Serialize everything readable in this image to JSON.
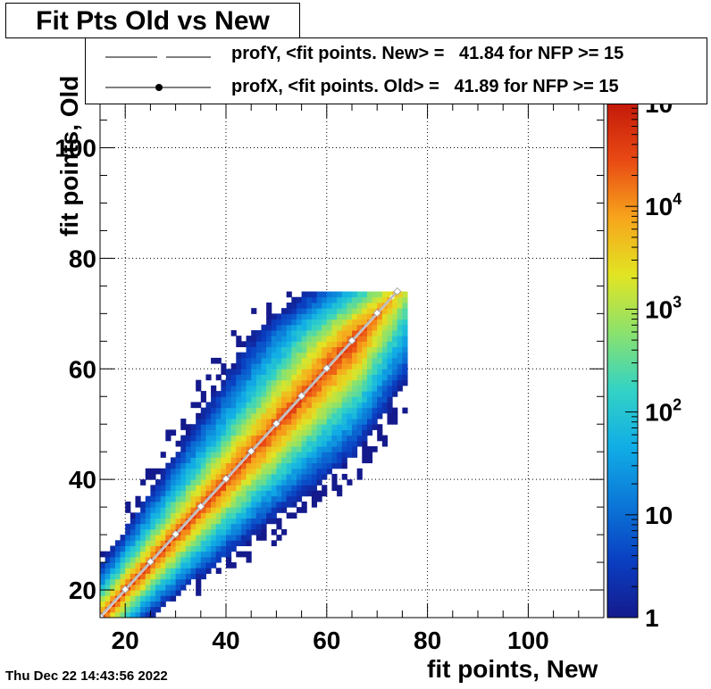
{
  "title": "Fit Pts Old vs New",
  "legend": [
    {
      "label": "profY, <fit points. New> =   41.84 for NFP >= 15",
      "style": "dashed-line"
    },
    {
      "label": "profX, <fit points. Old> =   41.89 for NFP >= 15",
      "style": "line-with-marker"
    }
  ],
  "timestamp": "Thu Dec 22 14:43:56 2022",
  "chart_data": {
    "type": "heatmap",
    "title": "Fit Pts Old vs New",
    "xlabel": "fit points, New",
    "ylabel": "fit points, Old",
    "xlim": [
      15,
      115
    ],
    "ylim": [
      15,
      108
    ],
    "x_ticks": [
      20,
      40,
      60,
      80,
      100
    ],
    "y_ticks": [
      20,
      40,
      60,
      80,
      100
    ],
    "grid": true,
    "z_scale": "log",
    "z_range": [
      1,
      100000
    ],
    "colorbar_ticks": [
      {
        "value": 1,
        "label": "1"
      },
      {
        "value": 10,
        "label": "10"
      },
      {
        "value": 100,
        "label": "10",
        "exp": "2"
      },
      {
        "value": 1000,
        "label": "10",
        "exp": "3"
      },
      {
        "value": 10000,
        "label": "10",
        "exp": "4"
      },
      {
        "value": 100000,
        "label": "10",
        "exp": "5"
      }
    ],
    "colormap": [
      "#141a8c",
      "#0a3fc2",
      "#0b78d8",
      "#11aee6",
      "#34d3c4",
      "#8ce26c",
      "#e2e423",
      "#f7a51c",
      "#e94a14",
      "#c41a0a"
    ],
    "description_regions": {
      "diagonal_core_range": [
        15,
        73
      ],
      "populated_x_range": [
        15,
        75
      ],
      "populated_y_range": [
        15,
        73
      ]
    },
    "series": [
      {
        "name": "profY",
        "x": [
          15,
          20,
          25,
          30,
          35,
          40,
          45,
          50,
          55,
          60,
          65,
          70,
          73
        ],
        "y": [
          15,
          20,
          25,
          30,
          35,
          40,
          45,
          50,
          55,
          60,
          65,
          70,
          73
        ]
      },
      {
        "name": "profX",
        "x": [
          15,
          20,
          25,
          30,
          35,
          40,
          45,
          50,
          55,
          60,
          65,
          70,
          74
        ],
        "y": [
          15.2,
          20.1,
          25.1,
          30.1,
          35.1,
          40.1,
          45.1,
          50.1,
          55.1,
          60.1,
          65.1,
          70.1,
          74
        ]
      }
    ]
  }
}
